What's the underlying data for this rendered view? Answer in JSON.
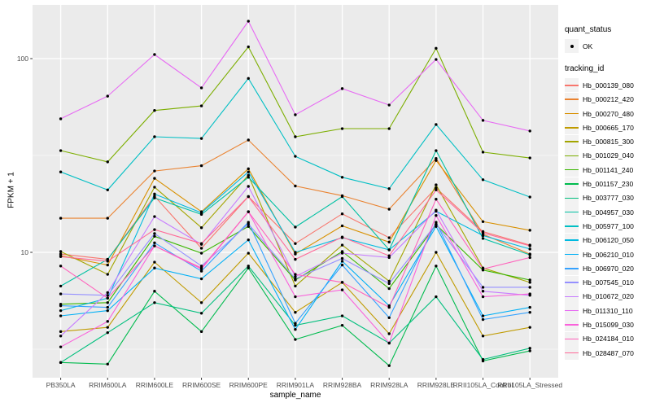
{
  "chart_data": {
    "type": "line",
    "title": "",
    "xlabel": "sample_name",
    "ylabel": "FPKM + 1",
    "y_scale": "log10",
    "y_ticks": [
      10,
      100
    ],
    "y_minor_ticks": [
      3.162,
      31.623
    ],
    "ylim": [
      2.2,
      190
    ],
    "grid": "on",
    "panel_bg": "#EBEBEB",
    "grid_color": "#FFFFFF",
    "point_color": "#000000",
    "axis_text_color": "#4D4D4D",
    "categories": [
      "PB350LA",
      "RRIM600LA",
      "RRIM600LE",
      "RRIM600SE",
      "RRIM600PE",
      "RRIM901LA",
      "RRIM928BA",
      "RRIM928LA",
      "RRIM928LE",
      "RRII105LA_Control",
      "RRII105LA_Stressed"
    ],
    "series": [
      {
        "name": "Hb_000139_080",
        "color": "#F8766D",
        "values": [
          9.8,
          9.2,
          19.5,
          10.5,
          19.4,
          11.1,
          15.8,
          11.9,
          21.5,
          12.8,
          10.9
        ]
      },
      {
        "name": "Hb_000212_420",
        "color": "#EA8331",
        "values": [
          15.0,
          15.0,
          26.3,
          28.0,
          38.0,
          22.0,
          19.6,
          16.7,
          30.5,
          12.4,
          9.8
        ]
      },
      {
        "name": "Hb_000270_480",
        "color": "#D89000",
        "values": [
          9.6,
          8.6,
          24.1,
          16.2,
          27.0,
          9.8,
          13.7,
          11.3,
          29.8,
          14.4,
          13.0
        ]
      },
      {
        "name": "Hb_000665_170",
        "color": "#C09B00",
        "values": [
          3.9,
          4.1,
          8.9,
          5.5,
          9.9,
          4.9,
          7.0,
          3.8,
          10.0,
          3.7,
          4.1
        ]
      },
      {
        "name": "Hb_000815_300",
        "color": "#A3A500",
        "values": [
          10.1,
          7.7,
          21.7,
          13.4,
          25.0,
          6.7,
          10.9,
          7.1,
          22.3,
          8.3,
          7.0
        ]
      },
      {
        "name": "Hb_001029_040",
        "color": "#7CAE00",
        "values": [
          33.5,
          29.3,
          54.0,
          57.0,
          115.0,
          39.5,
          43.5,
          43.5,
          113.0,
          32.9,
          30.7
        ]
      },
      {
        "name": "Hb_001141_240",
        "color": "#39B600",
        "values": [
          5.4,
          5.5,
          12.1,
          9.9,
          13.6,
          7.2,
          10.1,
          6.5,
          13.9,
          8.1,
          7.2
        ]
      },
      {
        "name": "Hb_001157_230",
        "color": "#00BB4E",
        "values": [
          2.7,
          2.65,
          6.3,
          3.9,
          8.3,
          3.55,
          4.2,
          2.6,
          8.5,
          2.75,
          3.1
        ]
      },
      {
        "name": "Hb_003777_030",
        "color": "#00BF7D",
        "values": [
          2.7,
          3.85,
          5.5,
          4.85,
          8.5,
          4.2,
          4.7,
          3.4,
          5.9,
          2.8,
          3.2
        ]
      },
      {
        "name": "Hb_004957_030",
        "color": "#00C1A3",
        "values": [
          6.7,
          9.2,
          19.1,
          15.7,
          24.4,
          13.5,
          19.4,
          10.3,
          33.5,
          11.8,
          9.7
        ]
      },
      {
        "name": "Hb_005977_100",
        "color": "#00BFC4",
        "values": [
          26.0,
          21.0,
          39.5,
          38.7,
          79.0,
          31.3,
          24.4,
          21.3,
          45.7,
          23.7,
          19.3
        ]
      },
      {
        "name": "Hb_006120_050",
        "color": "#00BAE0",
        "values": [
          5.0,
          5.8,
          20.0,
          16.0,
          26.0,
          10.0,
          11.9,
          10.3,
          16.3,
          12.2,
          10.4
        ]
      },
      {
        "name": "Hb_006210_010",
        "color": "#00B0F6",
        "values": [
          4.7,
          5.0,
          8.3,
          7.3,
          11.6,
          4.0,
          9.0,
          5.3,
          13.6,
          4.7,
          5.2
        ]
      },
      {
        "name": "Hb_006970_020",
        "color": "#35A2FF",
        "values": [
          5.3,
          5.2,
          11.2,
          8.0,
          14.3,
          4.3,
          8.6,
          4.6,
          14.3,
          4.5,
          4.9
        ]
      },
      {
        "name": "Hb_007545_010",
        "color": "#9590FF",
        "values": [
          6.1,
          6.0,
          12.5,
          8.5,
          14.0,
          7.3,
          9.3,
          6.9,
          14.0,
          6.6,
          6.6
        ]
      },
      {
        "name": "Hb_010672_020",
        "color": "#C77CFF",
        "values": [
          3.7,
          6.2,
          15.3,
          11.0,
          21.9,
          7.5,
          9.9,
          9.4,
          16.5,
          6.3,
          6.0
        ]
      },
      {
        "name": "Hb_011310_110",
        "color": "#E76BF3",
        "values": [
          48.9,
          64.0,
          105.0,
          70.6,
          156.0,
          51.3,
          70.0,
          57.6,
          99.0,
          48.0,
          42.3
        ]
      },
      {
        "name": "Hb_015099_030",
        "color": "#FA62DB",
        "values": [
          3.25,
          4.4,
          10.8,
          8.2,
          16.2,
          5.9,
          6.4,
          3.4,
          15.5,
          5.9,
          6.1
        ]
      },
      {
        "name": "Hb_024184_010",
        "color": "#FF62BC",
        "values": [
          8.5,
          5.8,
          10.8,
          8.3,
          16.2,
          7.7,
          7.0,
          5.2,
          18.8,
          8.2,
          9.4
        ]
      },
      {
        "name": "Hb_028487_070",
        "color": "#FF6A98",
        "values": [
          9.5,
          9.0,
          13.1,
          11.1,
          19.4,
          9.2,
          12.0,
          9.6,
          21.0,
          12.6,
          10.8
        ]
      }
    ]
  },
  "legend": {
    "quant_status_title": "quant_status",
    "quant_status_items": [
      {
        "label": "OK",
        "marker": "black-point"
      }
    ],
    "tracking_id_title": "tracking_id"
  }
}
